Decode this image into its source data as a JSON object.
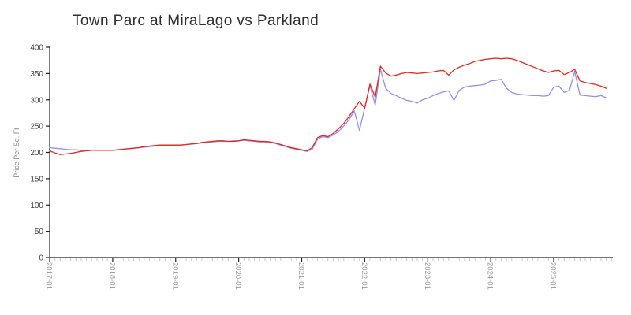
{
  "title": "Town Parc at MiraLago vs Parkland",
  "colors": {
    "background": "#ffffff",
    "axis": "#222222",
    "major_tick": "#222222",
    "minor_tick": "#c8c8c8",
    "x_tick_label": "#979797",
    "y_tick_label": "#3c3c3c",
    "axis_title": "#8a8a8a",
    "title_text": "#2f2f2f",
    "red_line": "#e02820",
    "blue_line": "#9191e8"
  },
  "chart_data": {
    "type": "line",
    "title": "Town Parc at MiraLago vs Parkland",
    "xlabel": "",
    "ylabel": "Price Per Sq. Ft",
    "ylim": [
      0,
      400
    ],
    "y_ticks": [
      0,
      50,
      100,
      150,
      200,
      250,
      300,
      350,
      400
    ],
    "x_tick_labels": [
      "2017-01",
      "2018-01",
      "2019-01",
      "2020-01",
      "2021-01",
      "2022-01",
      "2023-01",
      "2024-01",
      "2025-01"
    ],
    "x_start": "2017-01",
    "x_frequency": "monthly",
    "n_points": 107,
    "grid": false,
    "legend_position": "none",
    "series": [
      {
        "id": "blue-line",
        "color": "#9191e8",
        "values": [
          209,
          208,
          207,
          206,
          205,
          205,
          204,
          204,
          204,
          204,
          204,
          204,
          204,
          205,
          206,
          207,
          208,
          209,
          210,
          211,
          212,
          213,
          213,
          213,
          213,
          214,
          215,
          216,
          217,
          218,
          219,
          220,
          221,
          221,
          221,
          222,
          222,
          223,
          222,
          221,
          220,
          220,
          219,
          217,
          214,
          211,
          208,
          206,
          204,
          202,
          206,
          225,
          230,
          228,
          233,
          240,
          250,
          262,
          279,
          242,
          285,
          327,
          290,
          358,
          322,
          312,
          308,
          303,
          299,
          297,
          294,
          300,
          303,
          308,
          312,
          315,
          317,
          299,
          318,
          324,
          326,
          327,
          328,
          330,
          336,
          337,
          339,
          322,
          314,
          311,
          310,
          309,
          308,
          308,
          307,
          308,
          324,
          326,
          314,
          318,
          354,
          309,
          308,
          307,
          306,
          308,
          304
        ]
      },
      {
        "id": "red-line",
        "color": "#e02820",
        "values": [
          203,
          199,
          196,
          197,
          198,
          200,
          202,
          203,
          204,
          204,
          204,
          204,
          204,
          205,
          206,
          207,
          208,
          209,
          211,
          212,
          213,
          214,
          214,
          214,
          214,
          214,
          215,
          216,
          217,
          219,
          220,
          221,
          222,
          222,
          221,
          221,
          222,
          224,
          223,
          222,
          221,
          221,
          220,
          218,
          215,
          212,
          209,
          207,
          205,
          203,
          209,
          228,
          232,
          230,
          236,
          245,
          255,
          268,
          283,
          297,
          284,
          330,
          305,
          364,
          351,
          345,
          347,
          350,
          352,
          351,
          350,
          351,
          352,
          353,
          355,
          356,
          347,
          357,
          362,
          366,
          369,
          373,
          375,
          377,
          378,
          379,
          378,
          379,
          378,
          375,
          371,
          367,
          363,
          359,
          355,
          352,
          355,
          356,
          348,
          352,
          358,
          336,
          333,
          331,
          329,
          326,
          322
        ]
      }
    ]
  }
}
